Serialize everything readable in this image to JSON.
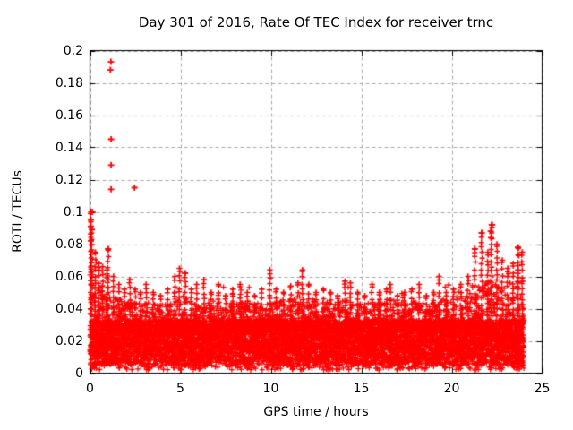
{
  "window": {
    "background": "#ffffff"
  },
  "chart_data": {
    "type": "scatter",
    "title": "Day 301 of 2016, Rate Of TEC Index for receiver trnc",
    "xlabel": "GPS time / hours",
    "ylabel": "ROTI / TECUs",
    "xlim": [
      0,
      25
    ],
    "ylim": [
      0,
      0.2
    ],
    "grid": true,
    "grid_style": "dashed",
    "grid_color": "#a8a8a8",
    "legend": "none",
    "marker": {
      "symbol": "plus",
      "color": "#ff0000",
      "name": "plus-marker"
    },
    "axis_color": "#000000",
    "x_ticks": [
      {
        "v": 0,
        "label": "0"
      },
      {
        "v": 5,
        "label": "5"
      },
      {
        "v": 10,
        "label": "10"
      },
      {
        "v": 15,
        "label": "15"
      },
      {
        "v": 20,
        "label": "20"
      },
      {
        "v": 25,
        "label": "25"
      }
    ],
    "y_ticks": [
      {
        "v": 0.0,
        "label": "0"
      },
      {
        "v": 0.02,
        "label": "0.02"
      },
      {
        "v": 0.04,
        "label": "0.04"
      },
      {
        "v": 0.06,
        "label": "0.06"
      },
      {
        "v": 0.08,
        "label": "0.08"
      },
      {
        "v": 0.1,
        "label": "0.1"
      },
      {
        "v": 0.12,
        "label": "0.12"
      },
      {
        "v": 0.14,
        "label": "0.14"
      },
      {
        "v": 0.16,
        "label": "0.16"
      },
      {
        "v": 0.18,
        "label": "0.18"
      },
      {
        "v": 0.2,
        "label": "0.2"
      }
    ],
    "data_time_range_hours": [
      0,
      24
    ],
    "outliers": [
      {
        "t": 1.16,
        "y": 0.193
      },
      {
        "t": 1.13,
        "y": 0.188
      },
      {
        "t": 1.17,
        "y": 0.145
      },
      {
        "t": 1.17,
        "y": 0.129
      },
      {
        "t": 1.17,
        "y": 0.114
      },
      {
        "t": 2.46,
        "y": 0.115
      },
      {
        "t": 0.13,
        "y": 0.1
      },
      {
        "t": 0.05,
        "y": 0.095
      },
      {
        "t": 0.05,
        "y": 0.091
      },
      {
        "t": 0.1,
        "y": 0.089
      },
      {
        "t": 0.05,
        "y": 0.082
      },
      {
        "t": 1.0,
        "y": 0.077
      },
      {
        "t": 5.26,
        "y": 0.062
      },
      {
        "t": 22.24,
        "y": 0.092
      },
      {
        "t": 22.16,
        "y": 0.088
      },
      {
        "t": 22.18,
        "y": 0.084
      },
      {
        "t": 21.66,
        "y": 0.087
      },
      {
        "t": 21.28,
        "y": 0.077
      },
      {
        "t": 23.67,
        "y": 0.078
      },
      {
        "t": 23.71,
        "y": 0.073
      },
      {
        "t": 23.67,
        "y": 0.064
      }
    ],
    "dense_band": {
      "low": 0.005,
      "high": 0.033,
      "top_envelope": [
        [
          0,
          0.068
        ],
        [
          0.3,
          0.06
        ],
        [
          0.7,
          0.052
        ],
        [
          1,
          0.05
        ],
        [
          1.5,
          0.046
        ],
        [
          2,
          0.045
        ],
        [
          3,
          0.043
        ],
        [
          4,
          0.043
        ],
        [
          5,
          0.045
        ],
        [
          6,
          0.044
        ],
        [
          7,
          0.043
        ],
        [
          8,
          0.044
        ],
        [
          9,
          0.043
        ],
        [
          10,
          0.044
        ],
        [
          11,
          0.046
        ],
        [
          12,
          0.045
        ],
        [
          13,
          0.043
        ],
        [
          14,
          0.045
        ],
        [
          15,
          0.043
        ],
        [
          16,
          0.044
        ],
        [
          17,
          0.043
        ],
        [
          18,
          0.044
        ],
        [
          19,
          0.044
        ],
        [
          20,
          0.046
        ],
        [
          21,
          0.05
        ],
        [
          21.5,
          0.053
        ],
        [
          22,
          0.056
        ],
        [
          23,
          0.056
        ],
        [
          23.5,
          0.057
        ],
        [
          24,
          0.058
        ]
      ]
    },
    "spikes": [
      [
        0.05,
        0.1
      ],
      [
        0.1,
        0.089
      ],
      [
        0.3,
        0.075
      ],
      [
        0.5,
        0.068
      ],
      [
        0.7,
        0.066
      ],
      [
        0.94,
        0.064
      ],
      [
        1.0,
        0.077
      ],
      [
        1.3,
        0.06
      ],
      [
        1.6,
        0.055
      ],
      [
        1.9,
        0.052
      ],
      [
        2.2,
        0.058
      ],
      [
        2.5,
        0.052
      ],
      [
        2.8,
        0.05
      ],
      [
        3.1,
        0.055
      ],
      [
        3.5,
        0.05
      ],
      [
        3.9,
        0.048
      ],
      [
        4.3,
        0.052
      ],
      [
        4.7,
        0.06
      ],
      [
        4.95,
        0.065
      ],
      [
        5.26,
        0.062
      ],
      [
        5.6,
        0.052
      ],
      [
        5.9,
        0.055
      ],
      [
        6.3,
        0.058
      ],
      [
        6.7,
        0.05
      ],
      [
        7.1,
        0.055
      ],
      [
        7.5,
        0.048
      ],
      [
        7.9,
        0.052
      ],
      [
        8.3,
        0.055
      ],
      [
        8.7,
        0.05
      ],
      [
        9.1,
        0.048
      ],
      [
        9.5,
        0.052
      ],
      [
        9.95,
        0.064
      ],
      [
        10.3,
        0.052
      ],
      [
        10.7,
        0.05
      ],
      [
        11.1,
        0.054
      ],
      [
        11.5,
        0.056
      ],
      [
        11.75,
        0.064
      ],
      [
        12.1,
        0.055
      ],
      [
        12.5,
        0.05
      ],
      [
        12.9,
        0.052
      ],
      [
        13.3,
        0.05
      ],
      [
        13.7,
        0.048
      ],
      [
        14.1,
        0.057
      ],
      [
        14.4,
        0.056
      ],
      [
        14.8,
        0.05
      ],
      [
        15.2,
        0.048
      ],
      [
        15.6,
        0.055
      ],
      [
        16.0,
        0.05
      ],
      [
        16.4,
        0.052
      ],
      [
        16.6,
        0.055
      ],
      [
        17.0,
        0.048
      ],
      [
        17.4,
        0.05
      ],
      [
        17.8,
        0.052
      ],
      [
        18.2,
        0.055
      ],
      [
        18.6,
        0.048
      ],
      [
        19.0,
        0.05
      ],
      [
        19.3,
        0.06
      ],
      [
        19.7,
        0.05
      ],
      [
        20.1,
        0.052
      ],
      [
        20.5,
        0.055
      ],
      [
        20.9,
        0.06
      ],
      [
        21.28,
        0.077
      ],
      [
        21.66,
        0.087
      ],
      [
        22.0,
        0.075
      ],
      [
        22.2,
        0.092
      ],
      [
        22.5,
        0.08
      ],
      [
        22.8,
        0.07
      ],
      [
        23.1,
        0.065
      ],
      [
        23.4,
        0.068
      ],
      [
        23.67,
        0.078
      ],
      [
        23.9,
        0.075
      ]
    ],
    "synthesis": {
      "seed": 1301,
      "n_points": 9200,
      "low_tail_frac": 0.03,
      "base_frac": 0.8,
      "mid_frac": 0.165,
      "low_tail_min": 0.002
    }
  }
}
